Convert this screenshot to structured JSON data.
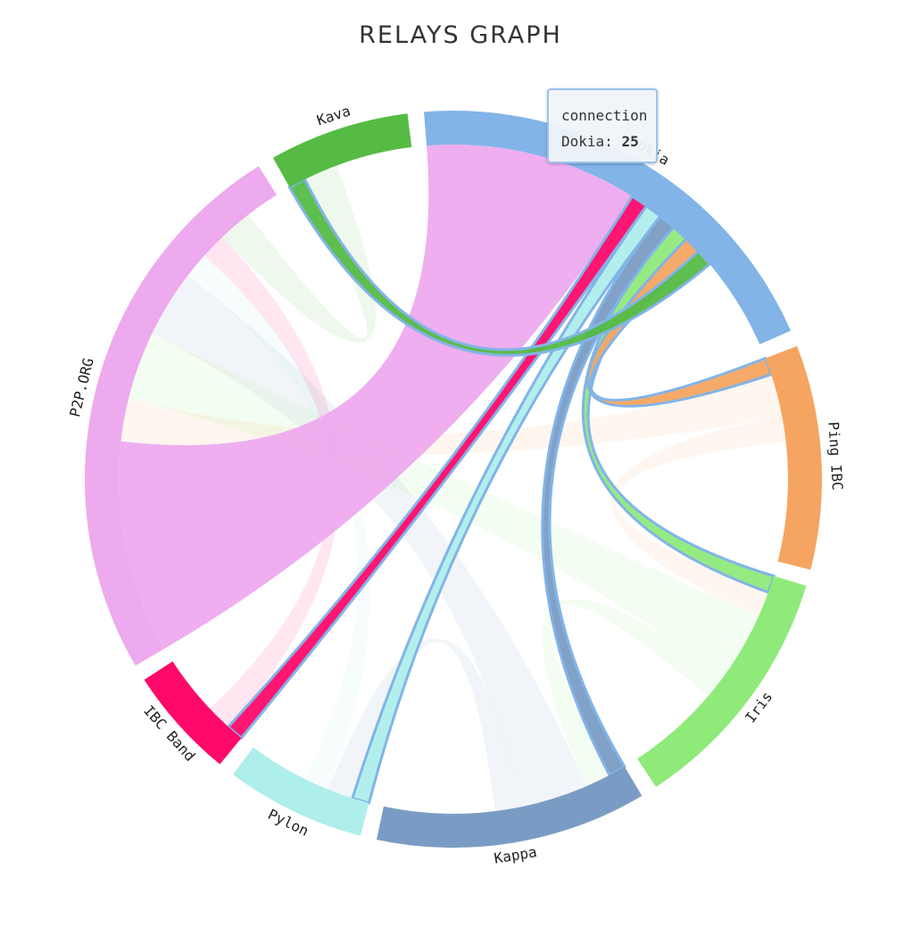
{
  "title": "RELAYS GRAPH",
  "tooltip": {
    "heading": "connection",
    "name": "Dokia",
    "separator": ":",
    "value": "25"
  },
  "chart_data": {
    "type": "chord",
    "title": "RELAYS GRAPH",
    "groups": [
      {
        "name": "Dokia",
        "color": "#82b4e8",
        "total": 48
      },
      {
        "name": "Ping IBC",
        "color": "#f5a561",
        "total": 24
      },
      {
        "name": "Iris",
        "color": "#8fea7a",
        "total": 27
      },
      {
        "name": "Kappa",
        "color": "#7a9cc4",
        "total": 29
      },
      {
        "name": "Pylon",
        "color": "#aeeeeb",
        "total": 15
      },
      {
        "name": "IBC Band",
        "color": "#ff0a6a",
        "total": 12
      },
      {
        "name": "P2P.ORG",
        "color": "#edaaee",
        "total": 60
      },
      {
        "name": "Kava",
        "color": "#55bb44",
        "total": 15
      }
    ],
    "highlighted_group": "Dokia",
    "chords": [
      {
        "source": "Dokia",
        "target": "P2P.ORG",
        "value": 25
      },
      {
        "source": "Dokia",
        "target": "IBC Band",
        "value": 2
      },
      {
        "source": "Dokia",
        "target": "Pylon",
        "value": 2
      },
      {
        "source": "Dokia",
        "target": "Kappa",
        "value": 2
      },
      {
        "source": "Dokia",
        "target": "Iris",
        "value": 2
      },
      {
        "source": "Dokia",
        "target": "Ping IBC",
        "value": 2
      },
      {
        "source": "Dokia",
        "target": "Kava",
        "value": 2
      },
      {
        "source": "Ping IBC",
        "target": "P2P.ORG",
        "value": 5
      },
      {
        "source": "Ping IBC",
        "target": "Iris",
        "value": 3
      },
      {
        "source": "Iris",
        "target": "P2P.ORG",
        "value": 8
      },
      {
        "source": "Iris",
        "target": "Kappa",
        "value": 3
      },
      {
        "source": "Kappa",
        "target": "P2P.ORG",
        "value": 8
      },
      {
        "source": "Kappa",
        "target": "Pylon",
        "value": 3
      },
      {
        "source": "Pylon",
        "target": "P2P.ORG",
        "value": 3
      },
      {
        "source": "IBC Band",
        "target": "P2P.ORG",
        "value": 3
      },
      {
        "source": "Kava",
        "target": "P2P.ORG",
        "value": 4
      }
    ]
  }
}
